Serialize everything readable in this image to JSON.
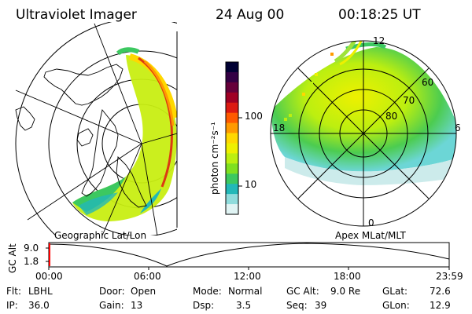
{
  "header": {
    "instrument": "Ultraviolet Imager",
    "date": "24 Aug 00",
    "time": "00:18:25 UT"
  },
  "colorbar": {
    "unit_label": "photon cm⁻²s⁻¹",
    "ticks": [
      "100",
      "10"
    ],
    "colors": [
      "#000033",
      "#330044",
      "#66003a",
      "#a00024",
      "#dc1a12",
      "#ff5a00",
      "#ff9a00",
      "#ffd800",
      "#eef000",
      "#bcef10",
      "#7fe020",
      "#3cc860",
      "#22b8b8",
      "#8fdcdc",
      "#e0f4f4"
    ]
  },
  "left_panel": {
    "label": "Geographic Lat/Lon"
  },
  "right_panel": {
    "label": "Apex MLat/MLT",
    "mlt_labels": [
      "12",
      "18",
      "6",
      "0"
    ],
    "lat_labels": [
      "60",
      "70",
      "80"
    ]
  },
  "timeline": {
    "ylabel": "GC Alt",
    "y_ticks": [
      "9.0",
      "1.8"
    ],
    "x_ticks": [
      "00:00",
      "06:00",
      "12:00",
      "18:00",
      "23:59"
    ]
  },
  "info": {
    "row1": [
      {
        "key": "Flt:",
        "value": "LBHL"
      },
      {
        "key": "Door:",
        "value": "Open"
      },
      {
        "key": "Mode:",
        "value": "Normal"
      },
      {
        "key": "GC Alt:",
        "value": "9.0 Re"
      },
      {
        "key": "GLat:",
        "value": "72.6"
      }
    ],
    "row2": [
      {
        "key": "IP:",
        "value": "36.0"
      },
      {
        "key": "Gain:",
        "value": "13"
      },
      {
        "key": "Dsp:",
        "value": "3.5"
      },
      {
        "key": "Seq:",
        "value": "39"
      },
      {
        "key": "GLon:",
        "value": "12.9"
      }
    ]
  }
}
